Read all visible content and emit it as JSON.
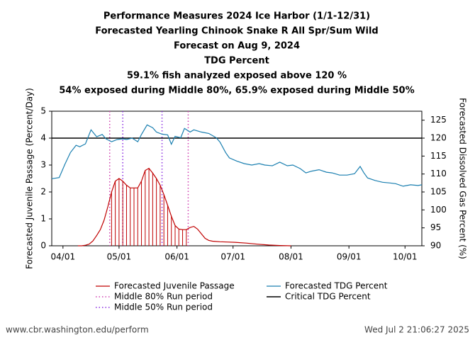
{
  "chart_data": {
    "type": "line",
    "title": [
      "Performance Measures 2024 Ice Harbor (1/1-12/31)",
      "Forecasted Yearling Chinook Snake R All Spr/Sum Wild",
      "Forecast on Aug 9, 2024",
      "TDG Percent",
      "59.1% fish analyzed exposed above 120 %",
      "54% exposed during Middle 80%, 65.9% exposed during Middle 50%"
    ],
    "ylabel": "Forecasted Juvenile Passage (Percent/Day)",
    "y2label": "Forecasted Dissolved Gas Percent (%)",
    "xlim": [
      86,
      284
    ],
    "xticks": [
      {
        "value": 92,
        "label": "04/01"
      },
      {
        "value": 122,
        "label": "05/01"
      },
      {
        "value": 153,
        "label": "06/01"
      },
      {
        "value": 183,
        "label": "07/01"
      },
      {
        "value": 214,
        "label": "08/01"
      },
      {
        "value": 245,
        "label": "09/01"
      },
      {
        "value": 275,
        "label": "10/01"
      }
    ],
    "ylim": [
      0,
      5
    ],
    "yticks": [
      0,
      1,
      2,
      3,
      4,
      5
    ],
    "y2lim": [
      90,
      127.5
    ],
    "y2ticks": [
      90,
      95,
      100,
      105,
      110,
      115,
      120,
      125
    ],
    "series": [
      {
        "name": "Forecasted Juvenile Passage",
        "color": "#c00000",
        "axis": "y",
        "x": [
          100,
          102,
          104,
          106,
          108,
          110,
          112,
          114,
          116,
          118,
          120,
          122,
          124,
          126,
          128,
          130,
          132,
          134,
          136,
          138,
          140,
          142,
          144,
          146,
          148,
          150,
          152,
          154,
          156,
          158,
          160,
          162,
          164,
          166,
          168,
          170,
          172,
          176,
          180,
          184,
          190,
          196,
          202,
          208,
          214
        ],
        "values": [
          0,
          0,
          0.02,
          0.06,
          0.18,
          0.38,
          0.6,
          0.95,
          1.45,
          2.0,
          2.4,
          2.5,
          2.4,
          2.25,
          2.15,
          2.15,
          2.15,
          2.4,
          2.8,
          2.88,
          2.7,
          2.5,
          2.25,
          1.9,
          1.5,
          1.1,
          0.75,
          0.62,
          0.6,
          0.6,
          0.68,
          0.72,
          0.62,
          0.45,
          0.28,
          0.2,
          0.17,
          0.15,
          0.14,
          0.13,
          0.1,
          0.06,
          0.03,
          0.01,
          0
        ]
      },
      {
        "name": "Forecasted TDG Percent",
        "color": "#1a7fb0",
        "axis": "y2",
        "x": [
          86,
          90,
          93,
          96,
          99,
          101,
          104,
          107,
          110,
          113,
          115,
          118,
          121,
          124,
          126,
          129,
          132,
          134,
          137,
          140,
          142,
          145,
          148,
          150,
          152,
          155,
          157,
          160,
          162,
          166,
          170,
          174,
          176,
          179,
          181,
          185,
          189,
          193,
          197,
          200,
          204,
          208,
          212,
          215,
          219,
          222,
          225,
          229,
          233,
          236,
          240,
          244,
          248,
          251,
          253,
          255,
          259,
          263,
          267,
          270,
          274,
          278,
          282,
          284
        ],
        "values": [
          108.7,
          109.0,
          112.7,
          116.0,
          118.0,
          117.6,
          118.4,
          122.3,
          120.4,
          121.0,
          119.8,
          119.0,
          119.6,
          119.8,
          119.6,
          120.0,
          119.0,
          121.0,
          123.7,
          122.9,
          121.7,
          121.1,
          120.9,
          118.3,
          120.5,
          120.1,
          122.7,
          121.7,
          122.3,
          121.7,
          121.3,
          120.1,
          118.9,
          116.0,
          114.5,
          113.6,
          112.9,
          112.5,
          112.9,
          112.5,
          112.3,
          113.3,
          112.3,
          112.5,
          111.5,
          110.3,
          110.8,
          111.2,
          110.5,
          110.3,
          109.7,
          109.7,
          110.1,
          112.1,
          110.3,
          108.9,
          108.2,
          107.7,
          107.5,
          107.3,
          106.6,
          107.0,
          106.8,
          107.0
        ]
      }
    ],
    "run_periods": [
      {
        "name": "Middle 80% Run period",
        "color": "#d040b0",
        "x": [
          117,
          159
        ]
      },
      {
        "name": "Middle 50% Run period",
        "color": "#8a2be2",
        "x": [
          124,
          145
        ]
      }
    ],
    "critical": {
      "name": "Critical TDG Percent",
      "color": "#000000",
      "value": 120,
      "axis": "y2"
    },
    "source": "www.cbr.washington.edu/perform",
    "timestamp": "Wed Jul  2 21:06:27 2025"
  }
}
